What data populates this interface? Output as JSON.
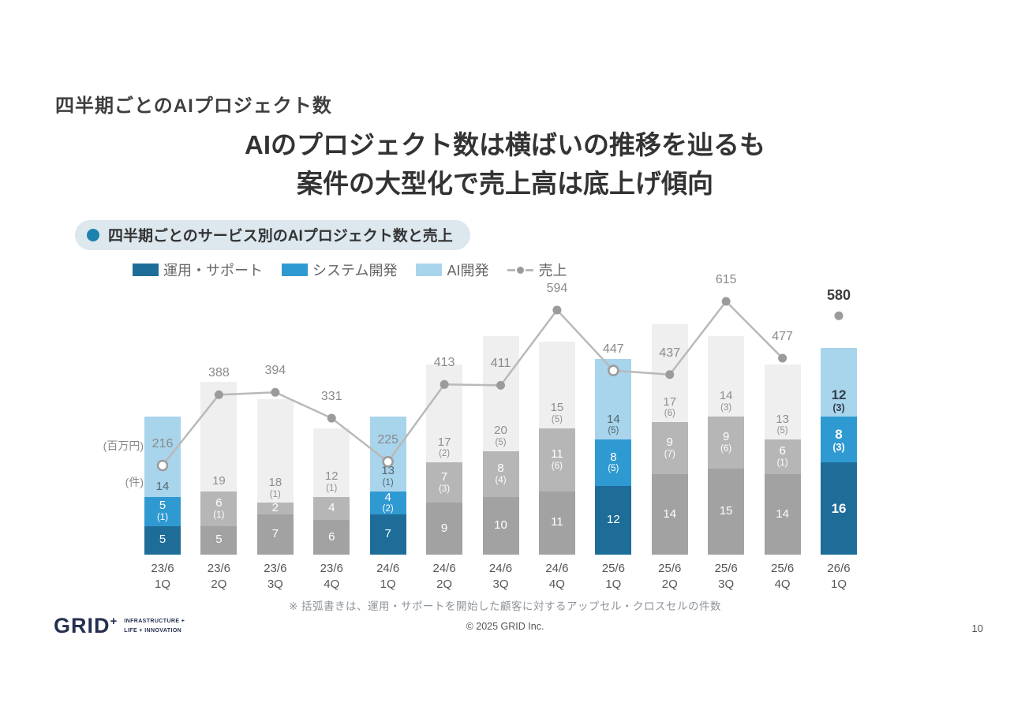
{
  "slide": {
    "kicker": "四半期ごとのAIプロジェクト数",
    "headline_line1": "AIのプロジェクト数は横ばいの推移を辿るも",
    "headline_line2": "案件の大型化で売上高は底上げ傾向",
    "section_badge": "四半期ごとのサービス別のAIプロジェクト数と売上",
    "footnote": "※ 括弧書きは、運用・サポートを開始した顧客に対するアップセル・クロスセルの件数",
    "copyright": "© 2025 GRID Inc.",
    "page_number": "10",
    "logo": {
      "name": "GRID",
      "plus": "+",
      "tagline1": "INFRASTRUCTURE +",
      "tagline2": "LIFE + INNOVATION"
    }
  },
  "chart_data": {
    "type": "bar",
    "title": "四半期ごとのサービス別のAIプロジェクト数と売上",
    "unit_money": "(百万円)",
    "unit_count": "(件)",
    "legend": [
      {
        "key": "ops",
        "label": "運用・サポート",
        "color": "#1e6d99"
      },
      {
        "key": "dev",
        "label": "システム開発",
        "color": "#2f9ad2"
      },
      {
        "key": "ai",
        "label": "AI開発",
        "color": "#a8d4ec"
      },
      {
        "key": "revenue",
        "label": "売上",
        "type": "line",
        "color": "#b9b9b9"
      }
    ],
    "series_names": [
      "運用・サポート",
      "システム開発",
      "AI開発",
      "売上"
    ],
    "colors": {
      "highlight": {
        "ops": "#1e6d99",
        "dev": "#2f9ad2",
        "ai": "#a8d4ec"
      },
      "gray": {
        "ops": "#a2a2a2",
        "dev": "#b6b6b6",
        "ai": "#efefef"
      },
      "line": "#b9b9b9",
      "dot": "#9b9b9b"
    },
    "quarters": [
      {
        "label": [
          "23/6",
          "1Q"
        ],
        "highlighted": true,
        "current": false,
        "ops": {
          "value": 5,
          "sub": null
        },
        "dev": {
          "value": 5,
          "sub": 1
        },
        "ai": {
          "value": 14,
          "sub": null
        },
        "revenue": 216
      },
      {
        "label": [
          "23/6",
          "2Q"
        ],
        "highlighted": false,
        "current": false,
        "ops": {
          "value": 5,
          "sub": null
        },
        "dev": {
          "value": 6,
          "sub": 1
        },
        "ai": {
          "value": 19,
          "sub": null
        },
        "revenue": 388
      },
      {
        "label": [
          "23/6",
          "3Q"
        ],
        "highlighted": false,
        "current": false,
        "ops": {
          "value": 7,
          "sub": null
        },
        "dev": {
          "value": 2,
          "sub": null
        },
        "ai": {
          "value": 18,
          "sub": 1
        },
        "revenue": 394
      },
      {
        "label": [
          "23/6",
          "4Q"
        ],
        "highlighted": false,
        "current": false,
        "ops": {
          "value": 6,
          "sub": null
        },
        "dev": {
          "value": 4,
          "sub": null
        },
        "ai": {
          "value": 12,
          "sub": 1
        },
        "revenue": 331
      },
      {
        "label": [
          "24/6",
          "1Q"
        ],
        "highlighted": true,
        "current": false,
        "ops": {
          "value": 7,
          "sub": null
        },
        "dev": {
          "value": 4,
          "sub": 2
        },
        "ai": {
          "value": 13,
          "sub": 1
        },
        "revenue": 225
      },
      {
        "label": [
          "24/6",
          "2Q"
        ],
        "highlighted": false,
        "current": false,
        "ops": {
          "value": 9,
          "sub": null
        },
        "dev": {
          "value": 7,
          "sub": 3
        },
        "ai": {
          "value": 17,
          "sub": 2
        },
        "revenue": 413
      },
      {
        "label": [
          "24/6",
          "3Q"
        ],
        "highlighted": false,
        "current": false,
        "ops": {
          "value": 10,
          "sub": null
        },
        "dev": {
          "value": 8,
          "sub": 4
        },
        "ai": {
          "value": 20,
          "sub": 5
        },
        "revenue": 411
      },
      {
        "label": [
          "24/6",
          "4Q"
        ],
        "highlighted": false,
        "current": false,
        "ops": {
          "value": 11,
          "sub": null
        },
        "dev": {
          "value": 11,
          "sub": 6
        },
        "ai": {
          "value": 15,
          "sub": 5
        },
        "revenue": 594
      },
      {
        "label": [
          "25/6",
          "1Q"
        ],
        "highlighted": true,
        "current": false,
        "ops": {
          "value": 12,
          "sub": null
        },
        "dev": {
          "value": 8,
          "sub": 5
        },
        "ai": {
          "value": 14,
          "sub": 5
        },
        "revenue": 447
      },
      {
        "label": [
          "25/6",
          "2Q"
        ],
        "highlighted": false,
        "current": false,
        "ops": {
          "value": 14,
          "sub": null
        },
        "dev": {
          "value": 9,
          "sub": 7
        },
        "ai": {
          "value": 17,
          "sub": 6
        },
        "revenue": 437
      },
      {
        "label": [
          "25/6",
          "3Q"
        ],
        "highlighted": false,
        "current": false,
        "ops": {
          "value": 15,
          "sub": null
        },
        "dev": {
          "value": 9,
          "sub": 6
        },
        "ai": {
          "value": 14,
          "sub": 3
        },
        "revenue": 615
      },
      {
        "label": [
          "25/6",
          "4Q"
        ],
        "highlighted": false,
        "current": false,
        "ops": {
          "value": 14,
          "sub": null
        },
        "dev": {
          "value": 6,
          "sub": 1
        },
        "ai": {
          "value": 13,
          "sub": 5
        },
        "revenue": 477
      },
      {
        "label": [
          "26/6",
          "1Q"
        ],
        "highlighted": true,
        "current": true,
        "ops": {
          "value": 16,
          "sub": null
        },
        "dev": {
          "value": 8,
          "sub": 3
        },
        "ai": {
          "value": 12,
          "sub": 3
        },
        "revenue": 580
      }
    ]
  }
}
